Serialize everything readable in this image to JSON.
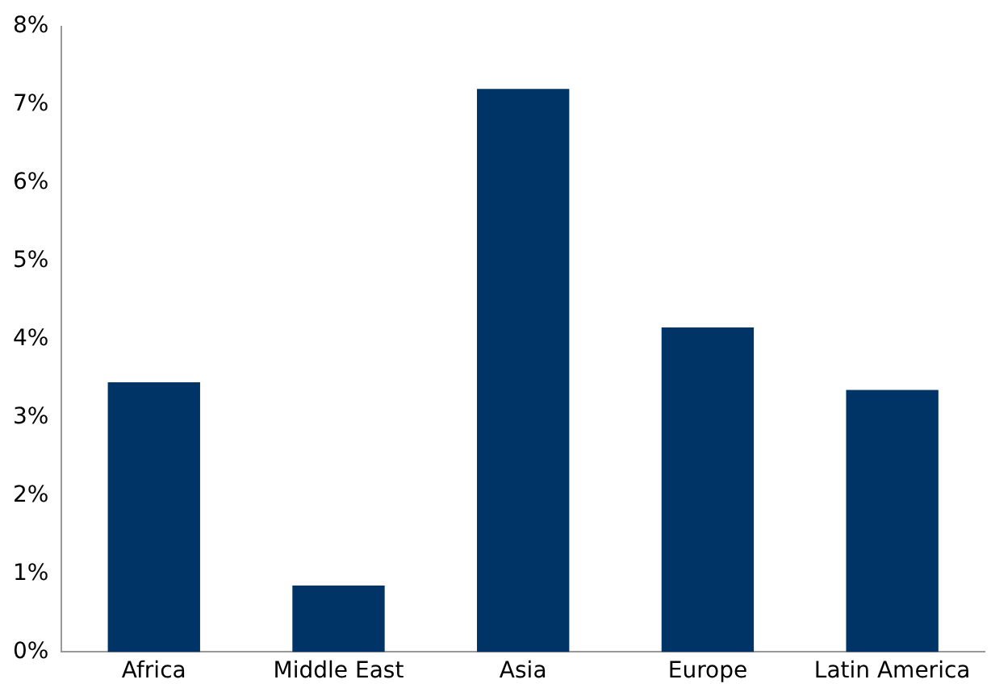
{
  "chart_data": {
    "type": "bar",
    "categories": [
      "Africa",
      "Middle East",
      "Asia",
      "Europe",
      "Latin America"
    ],
    "values": [
      3.45,
      0.85,
      7.2,
      4.15,
      3.35
    ],
    "color": "#003366",
    "ylim": [
      0,
      8
    ],
    "yticks": [
      {
        "value": 0,
        "label": "0%"
      },
      {
        "value": 1,
        "label": "1%"
      },
      {
        "value": 2,
        "label": "2%"
      },
      {
        "value": 3,
        "label": "3%"
      },
      {
        "value": 4,
        "label": "4%"
      },
      {
        "value": 5,
        "label": "5%"
      },
      {
        "value": 6,
        "label": "6%"
      },
      {
        "value": 7,
        "label": "7%"
      },
      {
        "value": 8,
        "label": "8%"
      }
    ],
    "grid": false,
    "legend": false
  }
}
